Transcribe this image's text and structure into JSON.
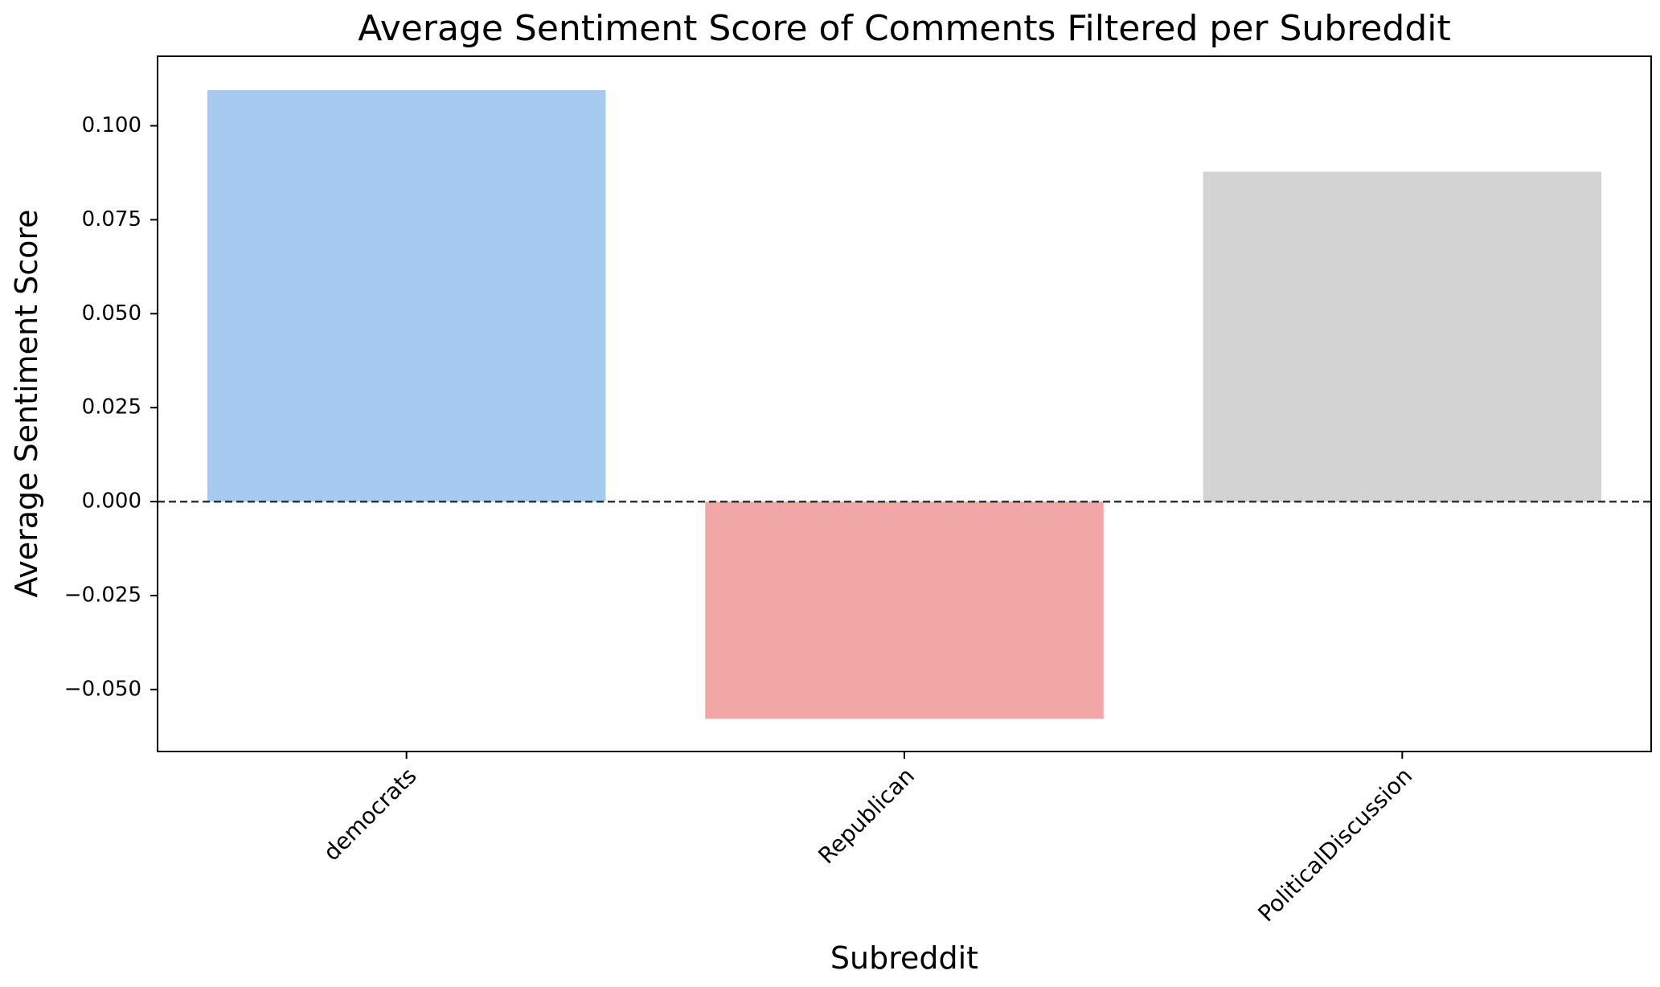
{
  "chart_data": {
    "type": "bar",
    "title": "Average Sentiment Score of Comments Filtered per Subreddit",
    "xlabel": "Subreddit",
    "ylabel": "Average Sentiment Score",
    "categories": [
      "democrats",
      "Republican",
      "PoliticalDiscussion"
    ],
    "values": [
      0.1095,
      -0.0578,
      0.0878
    ],
    "colors": [
      "#a7cbf0",
      "#f2a7a7",
      "#d3d3d3"
    ],
    "ylim": [
      -0.0665,
      0.1185
    ],
    "yticks": [
      -0.05,
      -0.025,
      0.0,
      0.025,
      0.05,
      0.075,
      0.1
    ],
    "ytick_labels": [
      "−0.050",
      "−0.025",
      "0.000",
      "0.025",
      "0.050",
      "0.075",
      "0.100"
    ],
    "reference_line": {
      "y": 0,
      "style": "dashed",
      "color": "#333333"
    },
    "grid": false,
    "legend": false
  }
}
